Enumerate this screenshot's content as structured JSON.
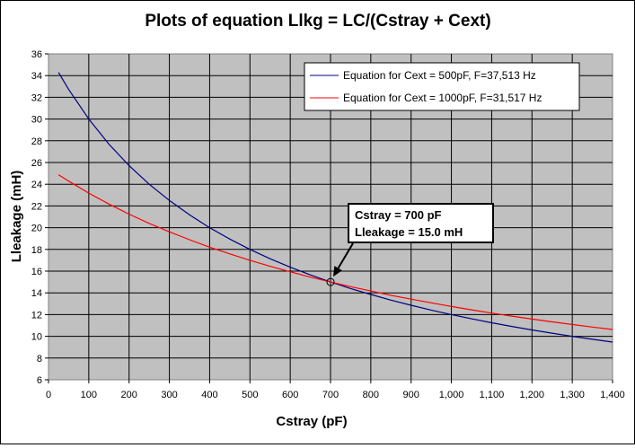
{
  "chart_data": {
    "type": "line",
    "title": "Plots of equation Llkg = LC/(Cstray + Cext)",
    "xlabel": "Cstray (pF)",
    "ylabel": "Lleakage (mH)",
    "xlim": [
      0,
      1400
    ],
    "ylim": [
      6,
      36
    ],
    "x_ticks": [
      0,
      100,
      200,
      300,
      400,
      500,
      600,
      700,
      800,
      900,
      1000,
      1100,
      1200,
      1300,
      1400
    ],
    "x_tick_labels": [
      "0",
      "100",
      "200",
      "300",
      "400",
      "500",
      "600",
      "700",
      "800",
      "900",
      "1,000",
      "1,100",
      "1,200",
      "1,300",
      "1,400"
    ],
    "y_ticks": [
      6,
      8,
      10,
      12,
      14,
      16,
      18,
      20,
      22,
      24,
      26,
      28,
      30,
      32,
      34,
      36
    ],
    "y_tick_labels": [
      "6",
      "8",
      "10",
      "12",
      "14",
      "16",
      "18",
      "20",
      "22",
      "24",
      "26",
      "28",
      "30",
      "32",
      "34",
      "36"
    ],
    "grid": true,
    "plot_background": "#c0c0c0",
    "legend_position": "top-right",
    "x": [
      25,
      50,
      100,
      150,
      200,
      250,
      300,
      350,
      400,
      450,
      500,
      550,
      600,
      650,
      700,
      750,
      800,
      850,
      900,
      950,
      1000,
      1050,
      1100,
      1150,
      1200,
      1250,
      1300,
      1350,
      1400
    ],
    "series": [
      {
        "name": "Equation for Cext = 500pF, F=37,513 Hz",
        "color": "#000080",
        "values": [
          34.29,
          32.73,
          30.0,
          27.69,
          25.71,
          24.0,
          22.5,
          21.18,
          20.0,
          18.95,
          18.0,
          17.14,
          16.36,
          15.65,
          15.0,
          14.4,
          13.85,
          13.33,
          12.86,
          12.41,
          12.0,
          11.61,
          11.25,
          10.91,
          10.59,
          10.29,
          10.0,
          9.73,
          9.47
        ]
      },
      {
        "name": "Equation for Cext = 1000pF, F=31,517 Hz",
        "color": "#ff0000",
        "values": [
          24.88,
          24.29,
          23.18,
          22.17,
          21.25,
          20.4,
          19.62,
          18.89,
          18.21,
          17.59,
          17.0,
          16.45,
          15.94,
          15.45,
          15.0,
          14.57,
          14.17,
          13.78,
          13.42,
          13.08,
          12.75,
          12.44,
          12.14,
          11.86,
          11.59,
          11.33,
          11.09,
          10.85,
          10.63
        ]
      }
    ],
    "annotation": {
      "lines": [
        "Cstray = 700 pF",
        "Lleakage = 15.0 mH"
      ],
      "x": 700,
      "y": 15.0
    }
  }
}
